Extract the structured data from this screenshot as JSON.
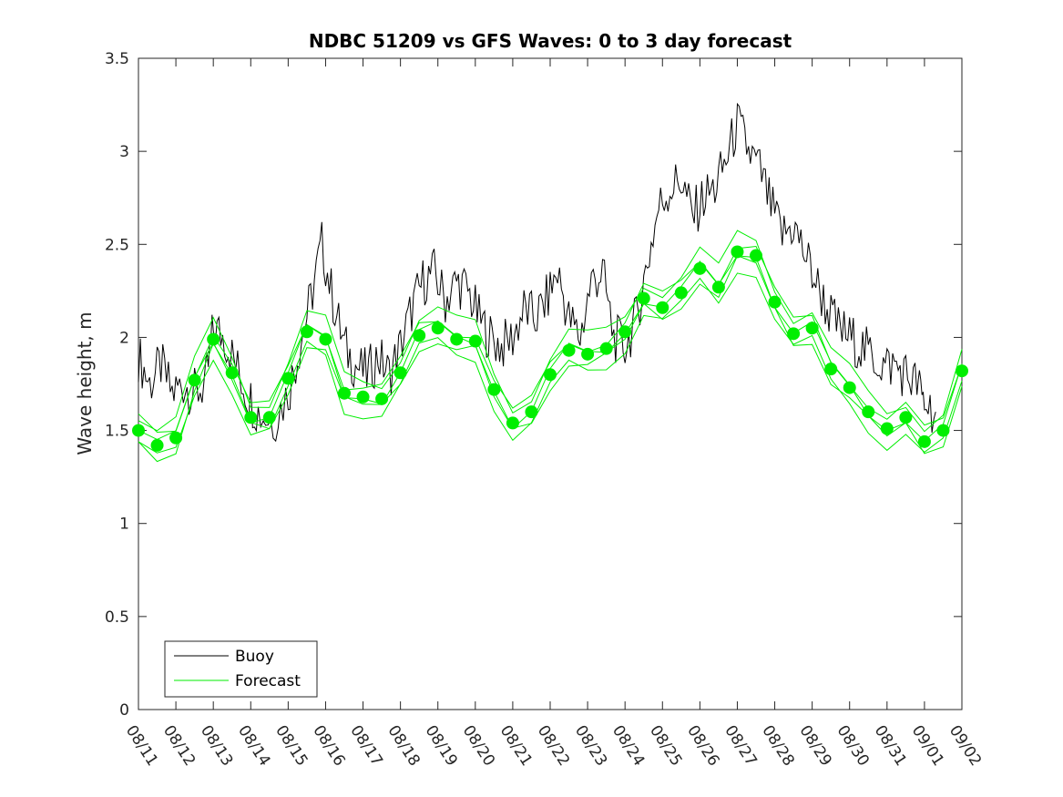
{
  "chart_data": {
    "type": "line",
    "title": "NDBC 51209 vs GFS Waves: 0 to 3 day forecast",
    "xlabel": "",
    "ylabel": "Wave height, m",
    "ylim": [
      0,
      3.5
    ],
    "yticks": [
      "0",
      "0.5",
      "1",
      "1.5",
      "2",
      "2.5",
      "3",
      "3.5"
    ],
    "xticks": [
      "08/11",
      "08/12",
      "08/13",
      "08/14",
      "08/15",
      "08/16",
      "08/17",
      "08/18",
      "08/19",
      "08/20",
      "08/21",
      "08/22",
      "08/23",
      "08/24",
      "08/25",
      "08/26",
      "08/27",
      "08/28",
      "08/29",
      "08/30",
      "08/31",
      "09/01",
      "09/02"
    ],
    "xlim_days": [
      0,
      22
    ],
    "legend": {
      "position": "bottom-left",
      "entries": [
        "Buoy",
        "Forecast"
      ]
    },
    "colors": {
      "buoy": "#000000",
      "forecast": "#00ee00"
    },
    "series": [
      {
        "name": "Buoy",
        "day": [
          0,
          0.3,
          0.6,
          0.9,
          1.2,
          1.5,
          1.8,
          2.0,
          2.3,
          2.6,
          2.9,
          3.2,
          3.6,
          4.0,
          4.3,
          4.6,
          4.9,
          5.2,
          5.5,
          5.8,
          6.1,
          6.4,
          6.7,
          7.0,
          7.3,
          7.6,
          7.9,
          8.2,
          8.5,
          8.8,
          9.1,
          9.4,
          9.7,
          10.0,
          10.3,
          10.6,
          10.9,
          11.2,
          11.5,
          11.8,
          12.1,
          12.4,
          12.7,
          13.0,
          13.3,
          13.6,
          13.9,
          14.2,
          14.5,
          14.8,
          15.1,
          15.4,
          15.7,
          16.0,
          16.3,
          16.6,
          16.9,
          17.2,
          17.5,
          17.8,
          18.1,
          18.4,
          18.7,
          19.0,
          19.3,
          19.6,
          19.9,
          20.2,
          20.5,
          20.8,
          21.0,
          21.3
        ],
        "values": [
          1.9,
          1.75,
          1.85,
          1.7,
          1.75,
          1.7,
          1.75,
          2.05,
          2.0,
          1.85,
          1.7,
          1.6,
          1.55,
          1.7,
          1.95,
          2.2,
          2.5,
          2.2,
          1.95,
          1.85,
          1.8,
          1.9,
          1.8,
          1.95,
          2.15,
          2.3,
          2.35,
          2.2,
          2.3,
          2.25,
          2.1,
          2.0,
          1.95,
          2.0,
          2.15,
          2.1,
          2.2,
          2.35,
          2.1,
          2.0,
          2.3,
          2.35,
          2.0,
          1.95,
          2.1,
          2.4,
          2.7,
          2.8,
          2.85,
          2.65,
          2.75,
          2.8,
          2.95,
          3.15,
          3.0,
          2.9,
          2.7,
          2.55,
          2.6,
          2.45,
          2.3,
          2.15,
          2.05,
          2.0,
          1.95,
          1.9,
          1.85,
          1.85,
          1.8,
          1.75,
          1.65,
          1.6
        ]
      },
      {
        "name": "Forecast",
        "day": [
          0,
          0.5,
          1.0,
          1.5,
          2.0,
          2.5,
          3.0,
          3.5,
          4.0,
          4.5,
          5.0,
          5.5,
          6.0,
          6.5,
          7.0,
          7.5,
          8.0,
          8.5,
          9.0,
          9.5,
          10.0,
          10.5,
          11.0,
          11.5,
          12.0,
          12.5,
          13.0,
          13.5,
          14.0,
          14.5,
          15.0,
          15.5,
          16.0,
          16.5,
          17.0,
          17.5,
          18.0,
          18.5,
          19.0,
          19.5,
          20.0,
          20.5,
          21.0,
          21.5,
          22.0
        ],
        "values": [
          1.5,
          1.42,
          1.46,
          1.77,
          1.99,
          1.81,
          1.57,
          1.57,
          1.78,
          2.03,
          1.99,
          1.7,
          1.68,
          1.67,
          1.81,
          2.01,
          2.05,
          1.99,
          1.98,
          1.72,
          1.54,
          1.6,
          1.8,
          1.93,
          1.91,
          1.94,
          2.03,
          2.21,
          2.16,
          2.24,
          2.37,
          2.27,
          2.46,
          2.44,
          2.19,
          2.02,
          2.05,
          1.83,
          1.73,
          1.6,
          1.51,
          1.57,
          1.44,
          1.5,
          1.82
        ]
      }
    ]
  }
}
